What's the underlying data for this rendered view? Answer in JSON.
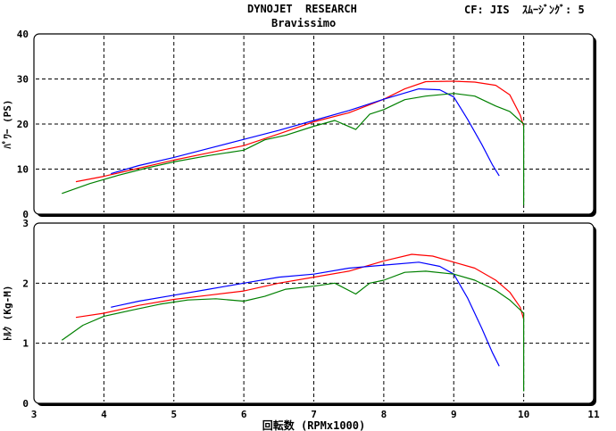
{
  "header": {
    "title": "DYNOJET  RESEARCH",
    "subtitle": "Bravissimo",
    "settings": "CF: JIS  ｽﾑｰｼﾞﾝｸﾞ: 5"
  },
  "chart_data": [
    {
      "type": "line",
      "ylabel": "ﾊﾟﾜｰ (PS)",
      "xlim": [
        3,
        11
      ],
      "ylim": [
        0,
        40
      ],
      "y_ticks": [
        "0",
        "10",
        "20",
        "30",
        "40"
      ],
      "grid": true,
      "series": [
        {
          "color": "#ff0000",
          "x": [
            3.6,
            4.0,
            4.5,
            5.0,
            5.5,
            6.0,
            6.5,
            7.0,
            7.5,
            8.0,
            8.3,
            8.6,
            9.0,
            9.3,
            9.6,
            9.8,
            9.95,
            10.0
          ],
          "y": [
            7.2,
            8.4,
            10.2,
            12.0,
            13.6,
            15.2,
            17.8,
            20.5,
            22.5,
            25.5,
            27.8,
            29.4,
            29.5,
            29.3,
            28.6,
            26.5,
            22.0,
            19.5
          ]
        },
        {
          "color": "#0000ff",
          "x": [
            4.1,
            4.5,
            5.0,
            5.5,
            6.0,
            6.5,
            7.0,
            7.5,
            8.0,
            8.5,
            8.8,
            9.0,
            9.2,
            9.4,
            9.55,
            9.65
          ],
          "y": [
            9.0,
            10.8,
            12.6,
            14.6,
            16.6,
            18.6,
            20.8,
            23.0,
            25.5,
            27.8,
            27.6,
            26.0,
            21.0,
            15.5,
            11.0,
            8.5
          ]
        },
        {
          "color": "#008000",
          "x": [
            3.4,
            3.8,
            4.2,
            4.6,
            5.0,
            5.5,
            6.0,
            6.3,
            6.6,
            7.0,
            7.3,
            7.6,
            7.8,
            8.0,
            8.3,
            8.6,
            9.0,
            9.3,
            9.6,
            9.8,
            10.0,
            10.0
          ],
          "y": [
            4.6,
            6.8,
            8.6,
            10.2,
            11.6,
            13.0,
            14.2,
            16.5,
            17.5,
            19.5,
            20.8,
            18.8,
            22.2,
            23.2,
            25.4,
            26.2,
            26.8,
            26.2,
            24.0,
            22.8,
            20.0,
            2.0
          ]
        }
      ]
    },
    {
      "type": "line",
      "ylabel": "ﾄﾙｸ (Kg-M)",
      "xlabel": "回転数 (RPMx1000)",
      "xlim": [
        3,
        11
      ],
      "ylim": [
        0,
        3
      ],
      "x_ticks": [
        "3",
        "4",
        "5",
        "6",
        "7",
        "8",
        "9",
        "10",
        "11"
      ],
      "y_ticks": [
        "0",
        "1",
        "2",
        "3"
      ],
      "grid": true,
      "series": [
        {
          "color": "#ff0000",
          "x": [
            3.6,
            4.0,
            4.5,
            5.0,
            5.5,
            6.0,
            6.5,
            7.0,
            7.5,
            8.0,
            8.4,
            8.7,
            9.0,
            9.3,
            9.6,
            9.8,
            9.95,
            10.0
          ],
          "y": [
            1.43,
            1.5,
            1.63,
            1.73,
            1.8,
            1.87,
            2.0,
            2.1,
            2.2,
            2.37,
            2.48,
            2.45,
            2.35,
            2.25,
            2.05,
            1.85,
            1.6,
            1.4
          ]
        },
        {
          "color": "#0000ff",
          "x": [
            4.1,
            4.5,
            5.0,
            5.5,
            6.0,
            6.5,
            7.0,
            7.5,
            8.0,
            8.5,
            8.8,
            9.0,
            9.2,
            9.4,
            9.55,
            9.65
          ],
          "y": [
            1.6,
            1.7,
            1.8,
            1.9,
            2.0,
            2.1,
            2.15,
            2.25,
            2.3,
            2.35,
            2.28,
            2.15,
            1.75,
            1.25,
            0.85,
            0.62
          ]
        },
        {
          "color": "#008000",
          "x": [
            3.4,
            3.7,
            4.0,
            4.4,
            4.8,
            5.2,
            5.6,
            6.0,
            6.3,
            6.6,
            7.0,
            7.3,
            7.6,
            7.8,
            8.0,
            8.3,
            8.6,
            9.0,
            9.3,
            9.6,
            9.8,
            10.0,
            10.0
          ],
          "y": [
            1.05,
            1.3,
            1.45,
            1.55,
            1.65,
            1.72,
            1.74,
            1.7,
            1.78,
            1.9,
            1.95,
            2.0,
            1.82,
            2.0,
            2.05,
            2.18,
            2.2,
            2.15,
            2.05,
            1.88,
            1.72,
            1.5,
            0.2
          ]
        }
      ]
    }
  ]
}
